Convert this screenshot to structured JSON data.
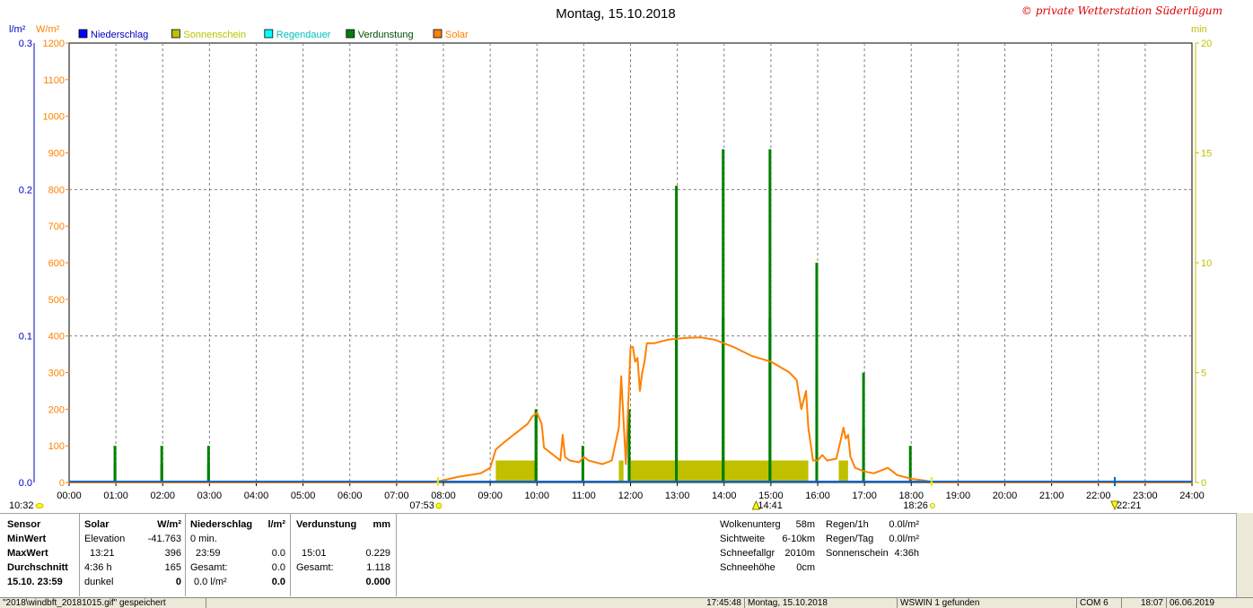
{
  "title": "Montag, 15.10.2018",
  "copyright": "© private Wetterstation Süderlügum",
  "units": {
    "left1": "l/m²",
    "left2": "W/m²",
    "right": "min"
  },
  "legend": [
    {
      "label": "Niederschlag",
      "color": "#0000ff"
    },
    {
      "label": "Sonnenschein",
      "color": "#c0c000"
    },
    {
      "label": "Regendauer",
      "color": "#00ffff"
    },
    {
      "label": "Verdunstung",
      "color": "#008000"
    },
    {
      "label": "Solar",
      "color": "#ff8000"
    }
  ],
  "colors": {
    "solar": "#ff8000",
    "sun": "#c0c000",
    "evap": "#008000",
    "rain": "#0066cc",
    "axis_left1": "#0000c0",
    "axis_left2": "#ff8000",
    "axis_right": "#c0c000"
  },
  "chart_data": {
    "type": "line",
    "x_ticks": [
      "00:00",
      "01:00",
      "02:00",
      "03:00",
      "04:00",
      "05:00",
      "06:00",
      "07:00",
      "08:00",
      "09:00",
      "10:00",
      "11:00",
      "12:00",
      "13:00",
      "14:00",
      "15:00",
      "16:00",
      "17:00",
      "18:00",
      "19:00",
      "20:00",
      "21:00",
      "22:00",
      "23:00",
      "24:00"
    ],
    "xlim": [
      0,
      24
    ],
    "axes": {
      "left_rain": {
        "unit": "l/m²",
        "ylim": [
          0,
          0.3
        ],
        "ticks": [
          "0.0",
          "0.1",
          "0.2",
          "0.3"
        ],
        "tick_values": [
          0,
          0.1,
          0.2,
          0.3
        ]
      },
      "left_solar": {
        "unit": "W/m²",
        "ylim": [
          0,
          1200
        ],
        "ticks": [
          "0",
          "100",
          "200",
          "300",
          "400",
          "500",
          "600",
          "700",
          "800",
          "900",
          "1000",
          "1100",
          "1200"
        ]
      },
      "right_min": {
        "unit": "min",
        "ylim": [
          0,
          20
        ],
        "ticks": [
          "0",
          "5",
          "10",
          "15",
          "20"
        ]
      }
    },
    "markers": {
      "moonrise": "10:32",
      "sunrise": "07:53",
      "noon": "14:41",
      "sunset": "18:26",
      "moonset": "22:21"
    },
    "series": [
      {
        "name": "Solar",
        "unit": "W/m²",
        "points": [
          [
            0,
            0
          ],
          [
            7.8,
            0
          ],
          [
            8.3,
            15
          ],
          [
            8.8,
            25
          ],
          [
            9.0,
            40
          ],
          [
            9.12,
            90
          ],
          [
            9.3,
            110
          ],
          [
            9.6,
            140
          ],
          [
            9.8,
            160
          ],
          [
            9.9,
            180
          ],
          [
            10.0,
            190
          ],
          [
            10.1,
            160
          ],
          [
            10.15,
            95
          ],
          [
            10.3,
            80
          ],
          [
            10.5,
            60
          ],
          [
            10.55,
            130
          ],
          [
            10.6,
            70
          ],
          [
            10.7,
            60
          ],
          [
            10.9,
            55
          ],
          [
            11.0,
            70
          ],
          [
            11.1,
            60
          ],
          [
            11.4,
            50
          ],
          [
            11.6,
            60
          ],
          [
            11.75,
            150
          ],
          [
            11.8,
            290
          ],
          [
            11.85,
            170
          ],
          [
            11.9,
            50
          ],
          [
            12.0,
            370
          ],
          [
            12.05,
            370
          ],
          [
            12.1,
            330
          ],
          [
            12.15,
            340
          ],
          [
            12.2,
            250
          ],
          [
            12.25,
            300
          ],
          [
            12.3,
            330
          ],
          [
            12.35,
            380
          ],
          [
            12.5,
            380
          ],
          [
            12.8,
            390
          ],
          [
            13.2,
            395
          ],
          [
            13.5,
            396
          ],
          [
            13.8,
            390
          ],
          [
            14.2,
            370
          ],
          [
            14.6,
            345
          ],
          [
            15.0,
            330
          ],
          [
            15.4,
            300
          ],
          [
            15.55,
            280
          ],
          [
            15.65,
            200
          ],
          [
            15.75,
            250
          ],
          [
            15.8,
            150
          ],
          [
            15.9,
            60
          ],
          [
            16.0,
            60
          ],
          [
            16.1,
            75
          ],
          [
            16.2,
            60
          ],
          [
            16.4,
            65
          ],
          [
            16.5,
            120
          ],
          [
            16.55,
            150
          ],
          [
            16.6,
            120
          ],
          [
            16.65,
            130
          ],
          [
            16.7,
            70
          ],
          [
            16.8,
            40
          ],
          [
            17.0,
            30
          ],
          [
            17.2,
            25
          ],
          [
            17.5,
            40
          ],
          [
            17.7,
            20
          ],
          [
            18.0,
            10
          ],
          [
            18.3,
            5
          ],
          [
            18.5,
            0
          ],
          [
            24,
            0
          ]
        ]
      },
      {
        "name": "Sonnenschein",
        "unit": "min",
        "intervals": [
          [
            9.12,
            10.0
          ],
          [
            11.75,
            11.85
          ],
          [
            12.0,
            15.8
          ],
          [
            16.45,
            16.65
          ]
        ],
        "value": 1.0
      },
      {
        "name": "Verdunstung",
        "unit": "l/m²",
        "bars": [
          [
            0.98,
            0.025
          ],
          [
            0.98,
            0.0125
          ],
          [
            1.98,
            0.025
          ],
          [
            1.98,
            0.0125
          ],
          [
            2.98,
            0.025
          ],
          [
            2.98,
            0.0125
          ],
          [
            9.98,
            0.05
          ],
          [
            9.98,
            0.0475
          ],
          [
            10.98,
            0.025
          ],
          [
            11.97,
            0.05
          ],
          [
            11.97,
            0.025
          ],
          [
            12.98,
            0.2025
          ],
          [
            12.98,
            0.1
          ],
          [
            13.98,
            0.2275
          ],
          [
            13.98,
            0.1125
          ],
          [
            14.98,
            0.2275
          ],
          [
            14.98,
            0.1125
          ],
          [
            15.98,
            0.15
          ],
          [
            15.98,
            0.075
          ],
          [
            16.98,
            0.075
          ],
          [
            16.98,
            0.0375
          ],
          [
            17.98,
            0.025
          ]
        ]
      },
      {
        "name": "Niederschlag",
        "unit": "l/m²",
        "points": [
          [
            0,
            0
          ],
          [
            24,
            0
          ]
        ]
      }
    ]
  },
  "panel": {
    "sensor": {
      "header": "Sensor",
      "rows": [
        "MinWert",
        "MaxWert",
        "Durchschnitt",
        "15.10. 23:59"
      ]
    },
    "solar": {
      "header": "Solar",
      "unit": "W/m²",
      "rows": [
        [
          "Elevation",
          "-41.763"
        ],
        [
          "13:21",
          "396"
        ],
        [
          "4:36 h",
          "165"
        ],
        [
          "dunkel",
          "0"
        ]
      ]
    },
    "rain": {
      "header": "Niederschlag",
      "unit": "l/m²",
      "rows": [
        [
          "0 min.",
          ""
        ],
        [
          "23:59",
          "0.0"
        ],
        [
          "Gesamt:",
          "0.0"
        ],
        [
          "0.0 l/m²",
          "0.0"
        ]
      ]
    },
    "evap": {
      "header": "Verdunstung",
      "unit": "mm",
      "rows": [
        [
          "",
          ""
        ],
        [
          "15:01",
          "0.229"
        ],
        [
          "Gesamt:",
          "1.118"
        ],
        [
          "",
          "0.000"
        ]
      ]
    },
    "misc1": [
      [
        "Wolkenunterg",
        "58m"
      ],
      [
        "Sichtweite",
        "6-10km"
      ],
      [
        "Schneefallgr",
        "2010m"
      ],
      [
        "Schneehöhe",
        "0cm"
      ]
    ],
    "misc2": [
      [
        "Regen/1h",
        "0.0l/m²"
      ],
      [
        "Regen/Tag",
        "0.0l/m²"
      ],
      [
        "Sonnenschein",
        "4:36h"
      ]
    ]
  },
  "statusbar": [
    "\"2018\\windbft_20181015.gif\" gespeichert",
    "17:45:48",
    "Montag, 15.10.2018",
    "WSWIN 1 gefunden",
    "COM 6",
    "18:07",
    "06.06.2019"
  ]
}
